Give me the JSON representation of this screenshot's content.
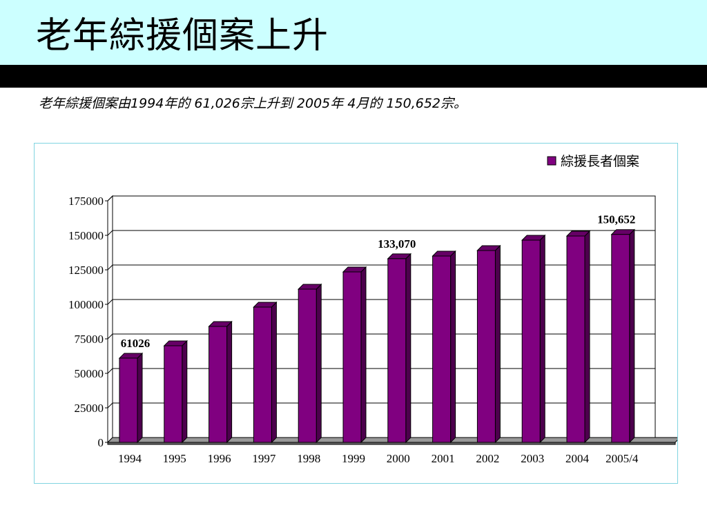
{
  "slide": {
    "title": "老年綜援個案上升",
    "subtitle": "老年綜援個案由1994年的 61,026宗上升到 2005年 4月的 150,652宗。"
  },
  "colors": {
    "title_band": "#ccffff",
    "bar_front": "#800080",
    "bar_side": "#4d004d",
    "bar_top": "#660066",
    "floor": "#999999"
  },
  "chart_data": {
    "type": "bar",
    "categories": [
      "1994",
      "1995",
      "1996",
      "1997",
      "1998",
      "1999",
      "2000",
      "2001",
      "2002",
      "2003",
      "2004",
      "2005/4"
    ],
    "series": [
      {
        "name": "綜援長者個案",
        "values": [
          61026,
          70000,
          84000,
          98000,
          111000,
          123500,
          133070,
          135000,
          139000,
          146500,
          149500,
          150652
        ]
      }
    ],
    "data_labels": [
      {
        "index": 0,
        "text": "61026"
      },
      {
        "index": 6,
        "text": "133,070"
      },
      {
        "index": 11,
        "text": "150,652"
      }
    ],
    "ylim": [
      0,
      175000
    ],
    "yticks": [
      0,
      25000,
      50000,
      75000,
      100000,
      125000,
      150000,
      175000
    ],
    "grid": true,
    "legend_position": "top-right",
    "style": "3d-column"
  }
}
